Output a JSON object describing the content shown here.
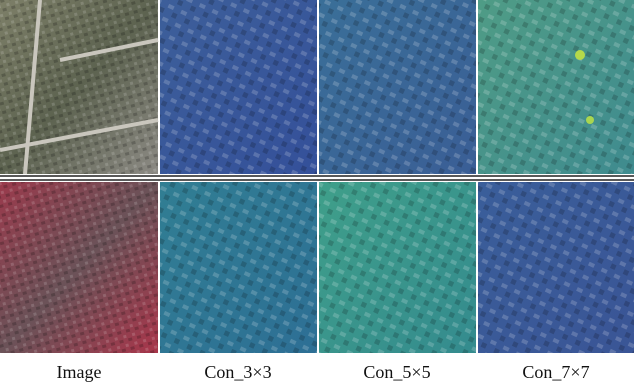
{
  "labels": [
    "Image",
    "Con_3×3",
    "Con_5×5",
    "Con_7×7"
  ]
}
